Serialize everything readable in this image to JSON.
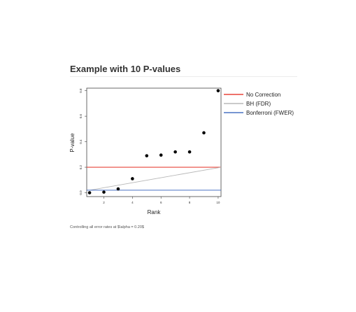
{
  "slide": {
    "title": "Example with 10 P-values",
    "caption": "Controlling all error rates at $\\alpha = 0.20$"
  },
  "chart_data": {
    "type": "scatter",
    "title": "",
    "xlabel": "Rank",
    "ylabel": "P-value",
    "xlim": [
      0.8,
      10.2
    ],
    "ylim": [
      -0.03,
      0.82
    ],
    "x_ticks": [
      2,
      4,
      6,
      8,
      10
    ],
    "y_ticks": [
      0.0,
      0.2,
      0.4,
      0.6,
      0.8
    ],
    "y_tick_labels": [
      "0.0",
      "0.2",
      "0.4",
      "0.6",
      "0.8"
    ],
    "grid": false,
    "legend_position": "right",
    "points": {
      "x": [
        1,
        2,
        3,
        4,
        5,
        6,
        7,
        8,
        9,
        10
      ],
      "y": [
        0.0,
        0.005,
        0.03,
        0.11,
        0.29,
        0.295,
        0.32,
        0.32,
        0.47,
        0.8
      ]
    },
    "series": [
      {
        "name": "No Correction",
        "color": "#e8443a",
        "from": [
          0.8,
          0.2
        ],
        "to": [
          10.2,
          0.2
        ]
      },
      {
        "name": "BH (FDR)",
        "color": "#b8b8b8",
        "from": [
          1.0,
          0.02
        ],
        "to": [
          10.2,
          0.2
        ]
      },
      {
        "name": "Bonferroni (FWER)",
        "color": "#4a72c4",
        "from": [
          0.8,
          0.02
        ],
        "to": [
          10.2,
          0.02
        ]
      }
    ]
  }
}
